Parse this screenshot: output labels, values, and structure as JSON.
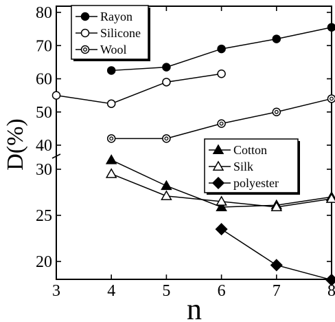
{
  "chart_data": {
    "type": "line",
    "xlabel": "n",
    "ylabel": "D(%)",
    "xlim": [
      3,
      8
    ],
    "x_ticks": [
      3,
      4,
      5,
      6,
      7,
      8
    ],
    "upper_panel": {
      "ylim": [
        38,
        80
      ],
      "y_ticks": [
        40,
        50,
        60,
        70,
        80
      ],
      "legend_position": "top-left",
      "series": [
        {
          "name": "Rayon",
          "marker": "filled-circle",
          "x": [
            4,
            5,
            6,
            7,
            8
          ],
          "y": [
            62.5,
            63.5,
            69,
            72,
            75.5
          ]
        },
        {
          "name": "Silicone",
          "marker": "open-circle",
          "x": [
            3,
            4,
            5,
            6
          ],
          "y": [
            55,
            52.5,
            59,
            61.5
          ]
        },
        {
          "name": "Wool",
          "marker": "double-circle",
          "x": [
            4,
            5,
            6,
            7,
            8
          ],
          "y": [
            42,
            42,
            46.5,
            50,
            54
          ]
        }
      ]
    },
    "lower_panel": {
      "ylim": [
        18,
        32
      ],
      "y_ticks": [
        20,
        25,
        30
      ],
      "legend_position": "center-right",
      "series": [
        {
          "name": "Cotton",
          "marker": "filled-triangle",
          "x": [
            4,
            5,
            6,
            7,
            8
          ],
          "y": [
            31,
            28.2,
            25.9,
            26.1,
            27
          ]
        },
        {
          "name": "Silk",
          "marker": "open-triangle",
          "x": [
            4,
            5,
            6,
            7,
            8
          ],
          "y": [
            29.5,
            27.1,
            26.5,
            25.9,
            26.8
          ]
        },
        {
          "name": "polyester",
          "marker": "filled-diamond",
          "x": [
            6,
            7,
            8
          ],
          "y": [
            23.5,
            19.6,
            18
          ]
        }
      ]
    }
  }
}
